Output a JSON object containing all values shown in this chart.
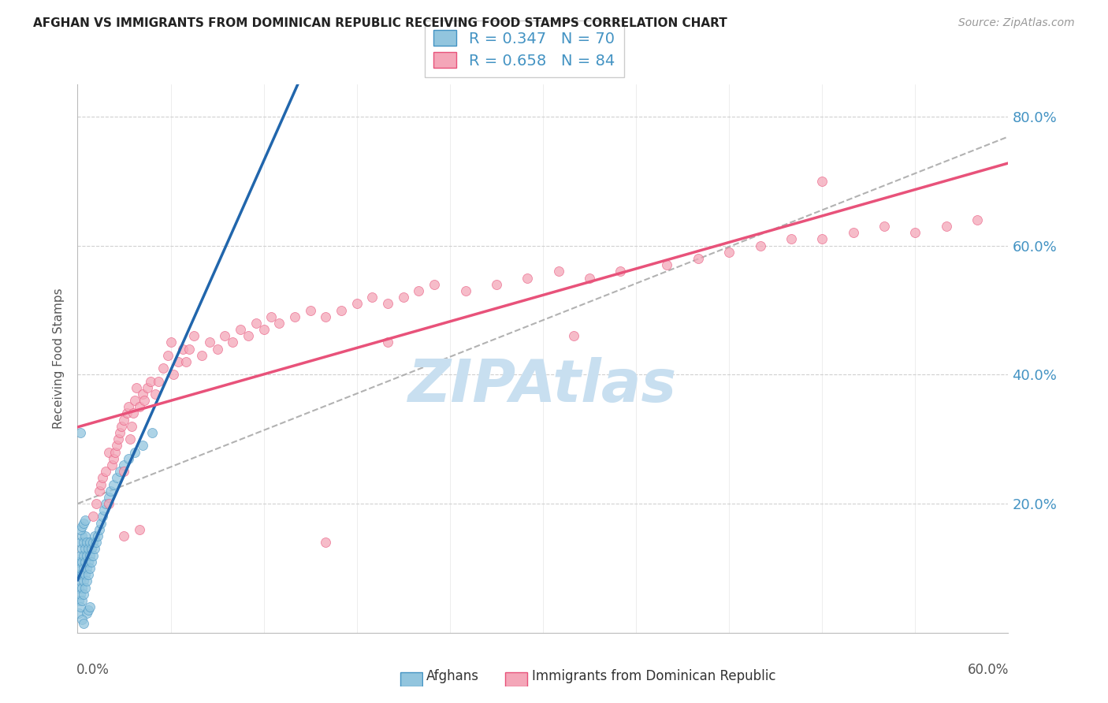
{
  "title": "AFGHAN VS IMMIGRANTS FROM DOMINICAN REPUBLIC RECEIVING FOOD STAMPS CORRELATION CHART",
  "source": "Source: ZipAtlas.com",
  "ylabel": "Receiving Food Stamps",
  "ytick_values": [
    0.2,
    0.4,
    0.6,
    0.8
  ],
  "color_blue": "#92c5de",
  "color_pink": "#f4a6b8",
  "color_blue_line": "#2166ac",
  "color_pink_line": "#e8527a",
  "color_blue_edge": "#4393c3",
  "color_pink_edge": "#e8527a",
  "color_text_blue": "#4393c3",
  "watermark_color": "#c8dff0",
  "trendline_blue_color": "#2166ac",
  "trendline_pink_color": "#e8527a",
  "trendline_dash_color": "#aaaaaa",
  "xlim": [
    0.0,
    0.6
  ],
  "ylim": [
    0.0,
    0.85
  ],
  "legend_entry1": "R = 0.347   N = 70",
  "legend_entry2": "R = 0.658   N = 84",
  "afghans_x": [
    0.001,
    0.001,
    0.001,
    0.001,
    0.001,
    0.002,
    0.002,
    0.002,
    0.002,
    0.002,
    0.002,
    0.003,
    0.003,
    0.003,
    0.003,
    0.003,
    0.003,
    0.004,
    0.004,
    0.004,
    0.004,
    0.004,
    0.005,
    0.005,
    0.005,
    0.005,
    0.005,
    0.006,
    0.006,
    0.006,
    0.006,
    0.007,
    0.007,
    0.007,
    0.008,
    0.008,
    0.008,
    0.009,
    0.009,
    0.01,
    0.01,
    0.011,
    0.011,
    0.012,
    0.013,
    0.014,
    0.015,
    0.016,
    0.017,
    0.018,
    0.02,
    0.021,
    0.023,
    0.025,
    0.027,
    0.03,
    0.033,
    0.037,
    0.042,
    0.048,
    0.002,
    0.003,
    0.004,
    0.005,
    0.006,
    0.007,
    0.008,
    0.002,
    0.003,
    0.004
  ],
  "afghans_y": [
    0.03,
    0.05,
    0.07,
    0.09,
    0.11,
    0.04,
    0.06,
    0.08,
    0.1,
    0.12,
    0.14,
    0.05,
    0.07,
    0.09,
    0.11,
    0.13,
    0.15,
    0.06,
    0.08,
    0.1,
    0.12,
    0.14,
    0.07,
    0.09,
    0.11,
    0.13,
    0.15,
    0.08,
    0.1,
    0.12,
    0.14,
    0.09,
    0.11,
    0.13,
    0.1,
    0.12,
    0.14,
    0.11,
    0.13,
    0.12,
    0.14,
    0.13,
    0.15,
    0.14,
    0.15,
    0.16,
    0.17,
    0.18,
    0.19,
    0.2,
    0.21,
    0.22,
    0.23,
    0.24,
    0.25,
    0.26,
    0.27,
    0.28,
    0.29,
    0.31,
    0.16,
    0.165,
    0.17,
    0.175,
    0.03,
    0.035,
    0.04,
    0.31,
    0.02,
    0.015
  ],
  "dominican_x": [
    0.01,
    0.012,
    0.014,
    0.015,
    0.016,
    0.018,
    0.02,
    0.02,
    0.022,
    0.023,
    0.024,
    0.025,
    0.026,
    0.027,
    0.028,
    0.03,
    0.03,
    0.032,
    0.033,
    0.034,
    0.035,
    0.036,
    0.037,
    0.038,
    0.04,
    0.042,
    0.043,
    0.045,
    0.047,
    0.05,
    0.052,
    0.055,
    0.058,
    0.06,
    0.062,
    0.065,
    0.068,
    0.07,
    0.072,
    0.075,
    0.08,
    0.085,
    0.09,
    0.095,
    0.1,
    0.105,
    0.11,
    0.115,
    0.12,
    0.125,
    0.13,
    0.14,
    0.15,
    0.16,
    0.17,
    0.18,
    0.19,
    0.2,
    0.21,
    0.22,
    0.23,
    0.25,
    0.27,
    0.29,
    0.31,
    0.33,
    0.35,
    0.38,
    0.4,
    0.42,
    0.44,
    0.46,
    0.48,
    0.5,
    0.52,
    0.54,
    0.56,
    0.58,
    0.48,
    0.16,
    0.03,
    0.04,
    0.32,
    0.2
  ],
  "dominican_y": [
    0.18,
    0.2,
    0.22,
    0.23,
    0.24,
    0.25,
    0.2,
    0.28,
    0.26,
    0.27,
    0.28,
    0.29,
    0.3,
    0.31,
    0.32,
    0.25,
    0.33,
    0.34,
    0.35,
    0.3,
    0.32,
    0.34,
    0.36,
    0.38,
    0.35,
    0.37,
    0.36,
    0.38,
    0.39,
    0.37,
    0.39,
    0.41,
    0.43,
    0.45,
    0.4,
    0.42,
    0.44,
    0.42,
    0.44,
    0.46,
    0.43,
    0.45,
    0.44,
    0.46,
    0.45,
    0.47,
    0.46,
    0.48,
    0.47,
    0.49,
    0.48,
    0.49,
    0.5,
    0.49,
    0.5,
    0.51,
    0.52,
    0.51,
    0.52,
    0.53,
    0.54,
    0.53,
    0.54,
    0.55,
    0.56,
    0.55,
    0.56,
    0.57,
    0.58,
    0.59,
    0.6,
    0.61,
    0.61,
    0.62,
    0.63,
    0.62,
    0.63,
    0.64,
    0.7,
    0.14,
    0.15,
    0.16,
    0.46,
    0.45
  ],
  "bottom_legend_label1": "Afghans",
  "bottom_legend_label2": "Immigrants from Dominican Republic"
}
